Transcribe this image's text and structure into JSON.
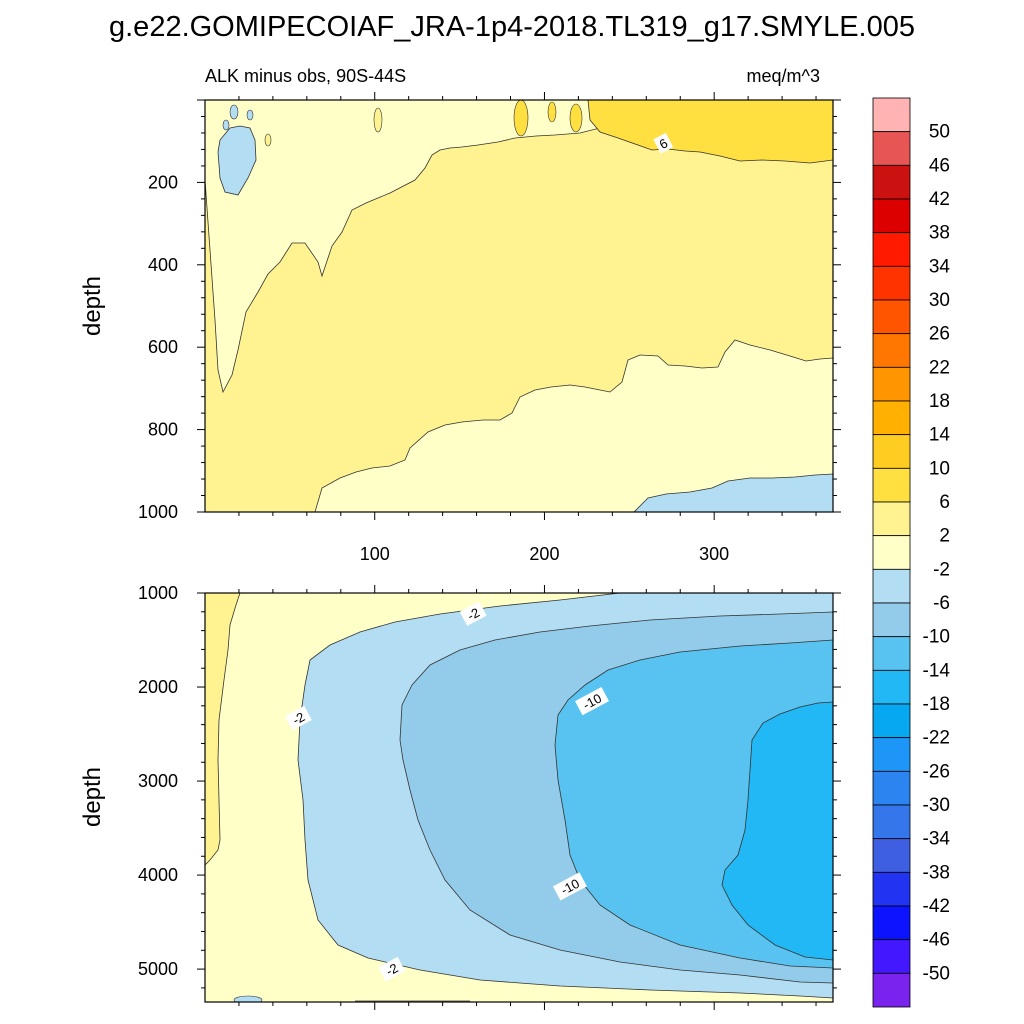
{
  "figure": {
    "title": "g.e22.GOMIPECOIAF_JRA-1p4-2018.TL319_g17.SMYLE.005"
  },
  "chart_data": [
    {
      "type": "contour",
      "panel": "upper",
      "subtitle_left": "ALK minus obs, 90S-44S",
      "subtitle_right": "meq/m^3",
      "ylabel": "depth",
      "xlim": [
        0,
        370
      ],
      "ylim": [
        0,
        1000
      ],
      "y_reversed": true,
      "xticks": [
        100,
        200,
        300
      ],
      "xtick_labels": [
        "100",
        "200",
        "300"
      ],
      "yticks": [
        200,
        400,
        600,
        800,
        1000
      ],
      "ytick_labels": [
        "200",
        "400",
        "600",
        "800",
        "1000"
      ],
      "contour_labels": [
        {
          "text": "6",
          "x": 270,
          "y": 105
        }
      ]
    },
    {
      "type": "contour",
      "panel": "lower",
      "ylabel": "depth",
      "xlim": [
        0,
        370
      ],
      "ylim": [
        1000,
        5350
      ],
      "y_reversed": true,
      "yticks": [
        1000,
        2000,
        3000,
        4000,
        5000
      ],
      "ytick_labels": [
        "1000",
        "2000",
        "3000",
        "4000",
        "5000"
      ],
      "contour_labels": [
        {
          "text": "-2",
          "x": 158,
          "y": 1220
        },
        {
          "text": "-10",
          "x": 228,
          "y": 2150
        },
        {
          "text": "-2",
          "x": 55,
          "y": 2330
        },
        {
          "text": "-10",
          "x": 215,
          "y": 4120
        },
        {
          "text": "-2",
          "x": 110,
          "y": 5000
        }
      ]
    }
  ],
  "colorbar": {
    "labels": [
      "50",
      "46",
      "42",
      "38",
      "34",
      "30",
      "26",
      "22",
      "18",
      "14",
      "10",
      "6",
      "2",
      "-2",
      "-6",
      "-10",
      "-14",
      "-18",
      "-22",
      "-26",
      "-30",
      "-34",
      "-38",
      "-42",
      "-46",
      "-50"
    ],
    "colors_top_to_bottom": [
      "#ffb3b3",
      "#e85555",
      "#cc1111",
      "#dd0000",
      "#ff1a00",
      "#ff3300",
      "#ff5500",
      "#ff7700",
      "#ff9500",
      "#ffb000",
      "#ffcc22",
      "#ffe040",
      "#fff291",
      "#ffffc8",
      "#b3ddf2",
      "#93ccea",
      "#58c3f0",
      "#22b8f5",
      "#07a8f2",
      "#1e96f7",
      "#2b84f0",
      "#3577ea",
      "#3f5fe3",
      "#2234f2",
      "#0c14ff",
      "#4317ff",
      "#7a22ee"
    ]
  }
}
